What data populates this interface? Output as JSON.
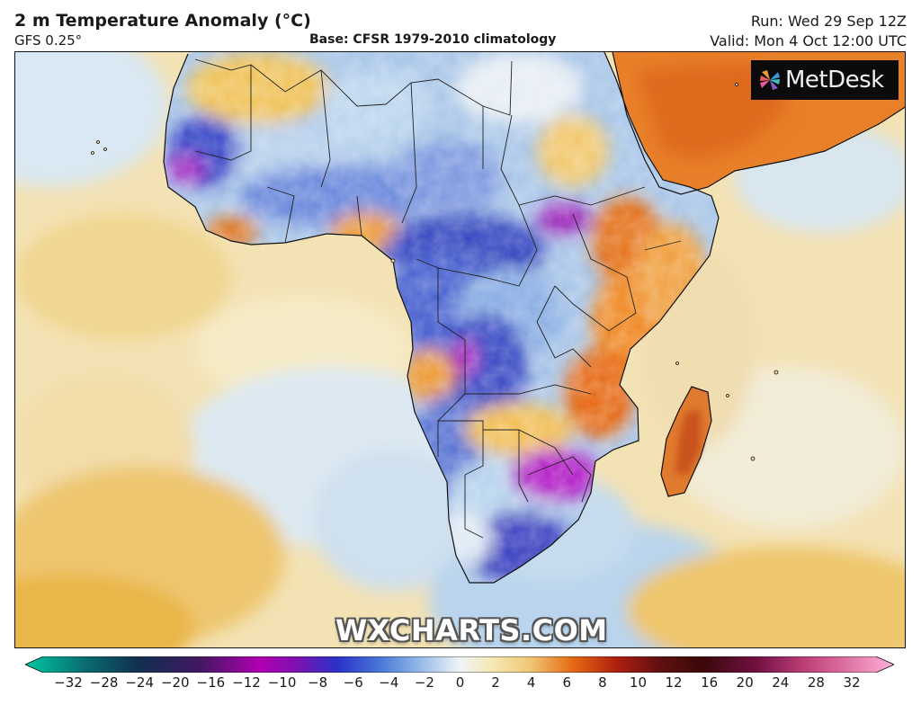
{
  "header": {
    "title": "2 m Temperature Anomaly (°C)",
    "model": "GFS 0.25°",
    "base": "Base: CFSR 1979-2010 climatology",
    "run": "Run: Wed 29 Sep 12Z",
    "valid": "Valid: Mon 4 Oct 12:00 UTC"
  },
  "brand": {
    "name": "MetDesk",
    "icon": "pinwheel-logo-icon"
  },
  "watermark": "WXCHARTS.COM",
  "colorbar": {
    "ticks": [
      "−32",
      "−28",
      "−24",
      "−20",
      "−16",
      "−12",
      "−10",
      "−8",
      "−6",
      "−4",
      "−2",
      "0",
      "2",
      "4",
      "6",
      "8",
      "10",
      "12",
      "16",
      "20",
      "24",
      "28",
      "32"
    ],
    "colors": {
      "min": "#00c8a0",
      "strong_cold": "#b000b0",
      "cold": "#2a32c8",
      "cool": "#8cb4e6",
      "neutral": "#f0f4f8",
      "warm": "#f0c878",
      "hot": "#e66a14",
      "very_hot": "#b02010",
      "max": "#ffb0d8"
    }
  }
}
